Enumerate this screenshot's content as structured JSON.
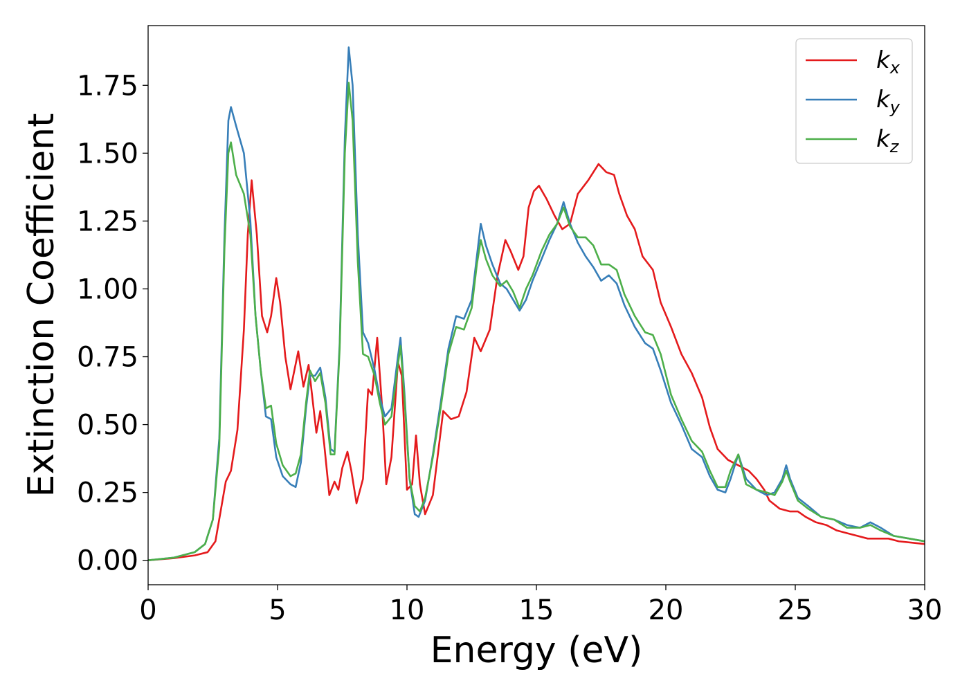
{
  "chart_data": {
    "type": "line",
    "title": "",
    "xlabel": "Energy (eV)",
    "ylabel": "Extinction Coefficient",
    "xlim": [
      0,
      30
    ],
    "ylim": [
      -0.09,
      1.97
    ],
    "xticks": [
      0,
      5,
      10,
      15,
      20,
      25,
      30
    ],
    "xtick_labels": [
      "0",
      "5",
      "10",
      "15",
      "20",
      "25",
      "30"
    ],
    "yticks": [
      0.0,
      0.25,
      0.5,
      0.75,
      1.0,
      1.25,
      1.5,
      1.75
    ],
    "ytick_labels": [
      "0.00",
      "0.25",
      "0.50",
      "0.75",
      "1.00",
      "1.25",
      "1.50",
      "1.75"
    ],
    "legend_position": "top-right",
    "series": [
      {
        "name": "k",
        "subscript": "x",
        "color": "#e41a1c",
        "points": [
          [
            0,
            0
          ],
          [
            1,
            0.008
          ],
          [
            1.8,
            0.018
          ],
          [
            2.3,
            0.03
          ],
          [
            2.6,
            0.07
          ],
          [
            2.8,
            0.18
          ],
          [
            3.0,
            0.29
          ],
          [
            3.2,
            0.33
          ],
          [
            3.45,
            0.48
          ],
          [
            3.7,
            0.85
          ],
          [
            3.85,
            1.2
          ],
          [
            4.0,
            1.4
          ],
          [
            4.2,
            1.2
          ],
          [
            4.4,
            0.9
          ],
          [
            4.6,
            0.84
          ],
          [
            4.75,
            0.9
          ],
          [
            4.95,
            1.04
          ],
          [
            5.1,
            0.95
          ],
          [
            5.3,
            0.75
          ],
          [
            5.5,
            0.63
          ],
          [
            5.8,
            0.77
          ],
          [
            6.0,
            0.64
          ],
          [
            6.2,
            0.72
          ],
          [
            6.5,
            0.47
          ],
          [
            6.65,
            0.55
          ],
          [
            6.8,
            0.43
          ],
          [
            7.0,
            0.24
          ],
          [
            7.2,
            0.29
          ],
          [
            7.35,
            0.26
          ],
          [
            7.5,
            0.34
          ],
          [
            7.7,
            0.4
          ],
          [
            7.85,
            0.33
          ],
          [
            8.05,
            0.21
          ],
          [
            8.3,
            0.3
          ],
          [
            8.5,
            0.63
          ],
          [
            8.65,
            0.61
          ],
          [
            8.85,
            0.82
          ],
          [
            9.05,
            0.55
          ],
          [
            9.2,
            0.28
          ],
          [
            9.4,
            0.38
          ],
          [
            9.65,
            0.73
          ],
          [
            9.8,
            0.68
          ],
          [
            10.0,
            0.26
          ],
          [
            10.2,
            0.28
          ],
          [
            10.35,
            0.46
          ],
          [
            10.5,
            0.28
          ],
          [
            10.7,
            0.17
          ],
          [
            11.0,
            0.24
          ],
          [
            11.4,
            0.55
          ],
          [
            11.7,
            0.52
          ],
          [
            12.0,
            0.53
          ],
          [
            12.3,
            0.62
          ],
          [
            12.6,
            0.82
          ],
          [
            12.85,
            0.77
          ],
          [
            13.2,
            0.85
          ],
          [
            13.5,
            1.05
          ],
          [
            13.8,
            1.18
          ],
          [
            14.0,
            1.14
          ],
          [
            14.3,
            1.07
          ],
          [
            14.5,
            1.12
          ],
          [
            14.7,
            1.3
          ],
          [
            14.9,
            1.36
          ],
          [
            15.1,
            1.38
          ],
          [
            15.4,
            1.33
          ],
          [
            15.7,
            1.27
          ],
          [
            16.0,
            1.22
          ],
          [
            16.3,
            1.24
          ],
          [
            16.6,
            1.35
          ],
          [
            17.0,
            1.4
          ],
          [
            17.4,
            1.46
          ],
          [
            17.7,
            1.43
          ],
          [
            18.0,
            1.42
          ],
          [
            18.2,
            1.35
          ],
          [
            18.5,
            1.27
          ],
          [
            18.8,
            1.22
          ],
          [
            19.1,
            1.12
          ],
          [
            19.5,
            1.07
          ],
          [
            19.8,
            0.95
          ],
          [
            20.2,
            0.86
          ],
          [
            20.6,
            0.76
          ],
          [
            21.0,
            0.69
          ],
          [
            21.4,
            0.6
          ],
          [
            21.7,
            0.49
          ],
          [
            22.0,
            0.41
          ],
          [
            22.4,
            0.37
          ],
          [
            22.8,
            0.35
          ],
          [
            23.2,
            0.33
          ],
          [
            23.5,
            0.3
          ],
          [
            23.8,
            0.26
          ],
          [
            24.0,
            0.22
          ],
          [
            24.4,
            0.19
          ],
          [
            24.8,
            0.18
          ],
          [
            25.1,
            0.18
          ],
          [
            25.4,
            0.16
          ],
          [
            25.8,
            0.14
          ],
          [
            26.2,
            0.13
          ],
          [
            26.6,
            0.11
          ],
          [
            27.0,
            0.1
          ],
          [
            27.4,
            0.09
          ],
          [
            27.8,
            0.08
          ],
          [
            28.2,
            0.08
          ],
          [
            28.6,
            0.08
          ],
          [
            29.0,
            0.07
          ],
          [
            29.5,
            0.065
          ],
          [
            30,
            0.06
          ]
        ]
      },
      {
        "name": "k",
        "subscript": "y",
        "color": "#377eb8",
        "points": [
          [
            0,
            0
          ],
          [
            1,
            0.01
          ],
          [
            1.8,
            0.03
          ],
          [
            2.2,
            0.06
          ],
          [
            2.5,
            0.15
          ],
          [
            2.75,
            0.45
          ],
          [
            2.95,
            1.2
          ],
          [
            3.1,
            1.62
          ],
          [
            3.2,
            1.67
          ],
          [
            3.4,
            1.6
          ],
          [
            3.7,
            1.5
          ],
          [
            3.95,
            1.25
          ],
          [
            4.15,
            0.9
          ],
          [
            4.35,
            0.7
          ],
          [
            4.55,
            0.53
          ],
          [
            4.75,
            0.52
          ],
          [
            4.95,
            0.38
          ],
          [
            5.2,
            0.31
          ],
          [
            5.5,
            0.28
          ],
          [
            5.7,
            0.27
          ],
          [
            5.9,
            0.36
          ],
          [
            6.1,
            0.56
          ],
          [
            6.25,
            0.68
          ],
          [
            6.45,
            0.68
          ],
          [
            6.65,
            0.71
          ],
          [
            6.85,
            0.6
          ],
          [
            7.05,
            0.41
          ],
          [
            7.2,
            0.4
          ],
          [
            7.4,
            0.8
          ],
          [
            7.6,
            1.56
          ],
          [
            7.75,
            1.89
          ],
          [
            7.9,
            1.75
          ],
          [
            8.1,
            1.2
          ],
          [
            8.3,
            0.84
          ],
          [
            8.5,
            0.8
          ],
          [
            8.75,
            0.7
          ],
          [
            8.95,
            0.6
          ],
          [
            9.15,
            0.53
          ],
          [
            9.4,
            0.56
          ],
          [
            9.65,
            0.75
          ],
          [
            9.75,
            0.82
          ],
          [
            9.9,
            0.62
          ],
          [
            10.1,
            0.3
          ],
          [
            10.3,
            0.17
          ],
          [
            10.45,
            0.16
          ],
          [
            10.7,
            0.22
          ],
          [
            11.0,
            0.39
          ],
          [
            11.3,
            0.58
          ],
          [
            11.6,
            0.78
          ],
          [
            11.9,
            0.9
          ],
          [
            12.2,
            0.89
          ],
          [
            12.5,
            0.96
          ],
          [
            12.7,
            1.12
          ],
          [
            12.85,
            1.24
          ],
          [
            13.05,
            1.16
          ],
          [
            13.3,
            1.09
          ],
          [
            13.6,
            1.02
          ],
          [
            13.85,
            1.0
          ],
          [
            14.1,
            0.96
          ],
          [
            14.35,
            0.92
          ],
          [
            14.6,
            0.96
          ],
          [
            14.85,
            1.03
          ],
          [
            15.2,
            1.11
          ],
          [
            15.5,
            1.18
          ],
          [
            15.8,
            1.24
          ],
          [
            16.05,
            1.32
          ],
          [
            16.3,
            1.24
          ],
          [
            16.6,
            1.17
          ],
          [
            16.9,
            1.12
          ],
          [
            17.2,
            1.08
          ],
          [
            17.5,
            1.03
          ],
          [
            17.8,
            1.05
          ],
          [
            18.1,
            1.02
          ],
          [
            18.4,
            0.94
          ],
          [
            18.8,
            0.86
          ],
          [
            19.2,
            0.8
          ],
          [
            19.5,
            0.78
          ],
          [
            19.8,
            0.7
          ],
          [
            20.2,
            0.58
          ],
          [
            20.6,
            0.5
          ],
          [
            21.0,
            0.41
          ],
          [
            21.4,
            0.38
          ],
          [
            21.7,
            0.31
          ],
          [
            22.0,
            0.26
          ],
          [
            22.3,
            0.25
          ],
          [
            22.5,
            0.3
          ],
          [
            22.8,
            0.39
          ],
          [
            23.1,
            0.3
          ],
          [
            23.5,
            0.26
          ],
          [
            23.9,
            0.24
          ],
          [
            24.2,
            0.25
          ],
          [
            24.5,
            0.3
          ],
          [
            24.65,
            0.35
          ],
          [
            24.8,
            0.3
          ],
          [
            25.1,
            0.23
          ],
          [
            25.5,
            0.2
          ],
          [
            26.0,
            0.16
          ],
          [
            26.5,
            0.15
          ],
          [
            27.0,
            0.13
          ],
          [
            27.5,
            0.12
          ],
          [
            27.9,
            0.14
          ],
          [
            28.3,
            0.12
          ],
          [
            28.8,
            0.09
          ],
          [
            29.4,
            0.08
          ],
          [
            30,
            0.07
          ]
        ]
      },
      {
        "name": "k",
        "subscript": "z",
        "color": "#4daf4a",
        "points": [
          [
            0,
            0
          ],
          [
            1,
            0.01
          ],
          [
            1.8,
            0.03
          ],
          [
            2.2,
            0.06
          ],
          [
            2.5,
            0.15
          ],
          [
            2.75,
            0.42
          ],
          [
            2.95,
            1.15
          ],
          [
            3.1,
            1.5
          ],
          [
            3.2,
            1.54
          ],
          [
            3.4,
            1.42
          ],
          [
            3.7,
            1.35
          ],
          [
            3.95,
            1.2
          ],
          [
            4.15,
            0.9
          ],
          [
            4.35,
            0.7
          ],
          [
            4.55,
            0.56
          ],
          [
            4.75,
            0.57
          ],
          [
            4.95,
            0.43
          ],
          [
            5.2,
            0.35
          ],
          [
            5.5,
            0.31
          ],
          [
            5.7,
            0.32
          ],
          [
            5.9,
            0.39
          ],
          [
            6.1,
            0.58
          ],
          [
            6.25,
            0.7
          ],
          [
            6.45,
            0.66
          ],
          [
            6.65,
            0.69
          ],
          [
            6.85,
            0.58
          ],
          [
            7.05,
            0.39
          ],
          [
            7.2,
            0.39
          ],
          [
            7.4,
            0.78
          ],
          [
            7.6,
            1.5
          ],
          [
            7.75,
            1.76
          ],
          [
            7.9,
            1.62
          ],
          [
            8.1,
            1.1
          ],
          [
            8.3,
            0.76
          ],
          [
            8.5,
            0.75
          ],
          [
            8.75,
            0.68
          ],
          [
            8.95,
            0.58
          ],
          [
            9.15,
            0.5
          ],
          [
            9.4,
            0.53
          ],
          [
            9.65,
            0.72
          ],
          [
            9.75,
            0.79
          ],
          [
            9.9,
            0.6
          ],
          [
            10.1,
            0.3
          ],
          [
            10.3,
            0.2
          ],
          [
            10.5,
            0.18
          ],
          [
            10.7,
            0.23
          ],
          [
            11.0,
            0.38
          ],
          [
            11.3,
            0.56
          ],
          [
            11.6,
            0.76
          ],
          [
            11.9,
            0.86
          ],
          [
            12.2,
            0.85
          ],
          [
            12.5,
            0.93
          ],
          [
            12.7,
            1.09
          ],
          [
            12.85,
            1.18
          ],
          [
            13.05,
            1.11
          ],
          [
            13.3,
            1.05
          ],
          [
            13.6,
            1.01
          ],
          [
            13.85,
            1.03
          ],
          [
            14.1,
            0.99
          ],
          [
            14.35,
            0.93
          ],
          [
            14.6,
            1.0
          ],
          [
            14.85,
            1.05
          ],
          [
            15.2,
            1.14
          ],
          [
            15.5,
            1.2
          ],
          [
            15.8,
            1.24
          ],
          [
            16.05,
            1.3
          ],
          [
            16.3,
            1.23
          ],
          [
            16.6,
            1.19
          ],
          [
            16.9,
            1.19
          ],
          [
            17.2,
            1.16
          ],
          [
            17.5,
            1.09
          ],
          [
            17.8,
            1.09
          ],
          [
            18.1,
            1.07
          ],
          [
            18.4,
            0.98
          ],
          [
            18.8,
            0.9
          ],
          [
            19.2,
            0.84
          ],
          [
            19.5,
            0.83
          ],
          [
            19.8,
            0.76
          ],
          [
            20.2,
            0.61
          ],
          [
            20.6,
            0.52
          ],
          [
            21.0,
            0.44
          ],
          [
            21.4,
            0.4
          ],
          [
            21.7,
            0.33
          ],
          [
            22.0,
            0.27
          ],
          [
            22.3,
            0.27
          ],
          [
            22.5,
            0.33
          ],
          [
            22.8,
            0.39
          ],
          [
            23.1,
            0.28
          ],
          [
            23.5,
            0.26
          ],
          [
            23.9,
            0.25
          ],
          [
            24.2,
            0.24
          ],
          [
            24.5,
            0.29
          ],
          [
            24.65,
            0.33
          ],
          [
            24.8,
            0.29
          ],
          [
            25.1,
            0.22
          ],
          [
            25.5,
            0.19
          ],
          [
            26.0,
            0.16
          ],
          [
            26.5,
            0.15
          ],
          [
            27.0,
            0.12
          ],
          [
            27.5,
            0.12
          ],
          [
            27.9,
            0.13
          ],
          [
            28.3,
            0.11
          ],
          [
            28.8,
            0.09
          ],
          [
            29.4,
            0.08
          ],
          [
            30,
            0.07
          ]
        ]
      }
    ]
  }
}
